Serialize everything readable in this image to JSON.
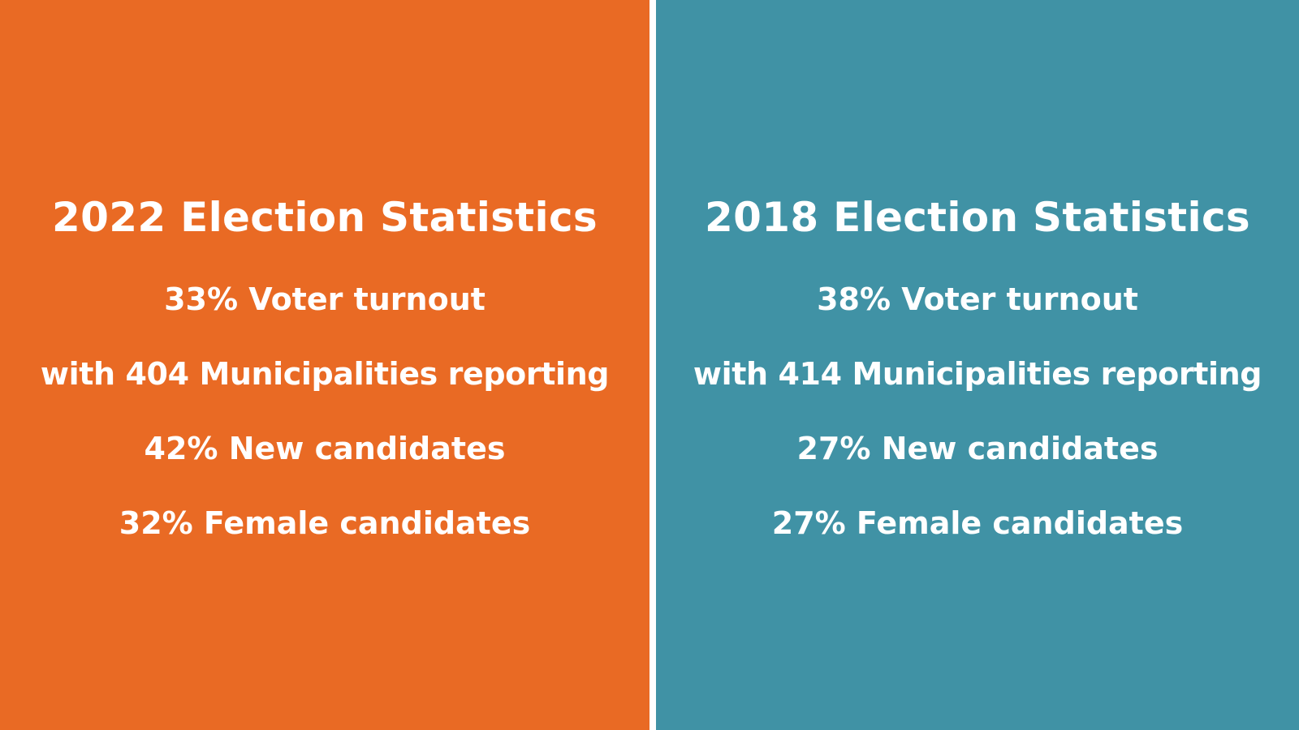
{
  "panels": [
    {
      "color": "#E96A24",
      "title": "2022 Election Statistics",
      "stats": [
        "33% Voter turnout",
        "with 404 Municipalities reporting",
        "42% New candidates",
        "32% Female candidates"
      ]
    },
    {
      "color": "#4092A5",
      "title": "2018 Election Statistics",
      "stats": [
        "38% Voter turnout",
        "with 414 Municipalities reporting",
        "27% New candidates",
        "27% Female candidates"
      ]
    }
  ]
}
